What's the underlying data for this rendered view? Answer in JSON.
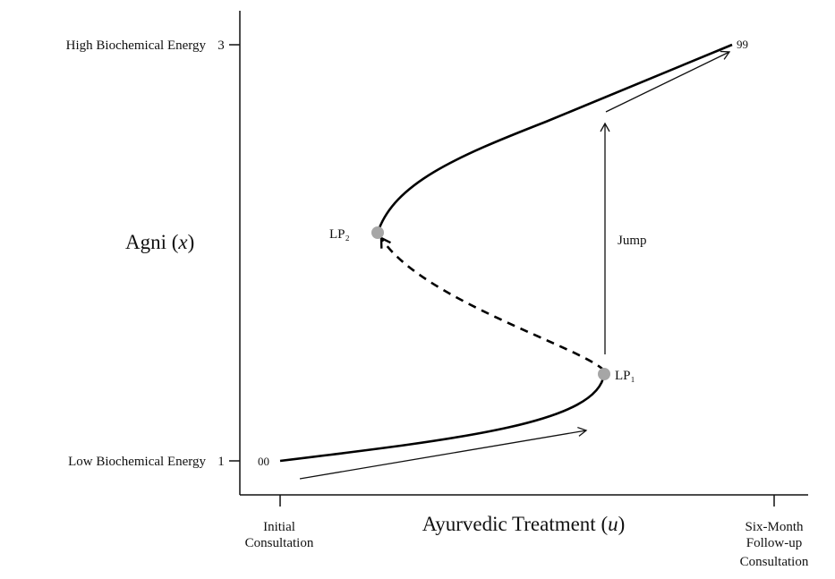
{
  "y_axis": {
    "title_prefix": "Agni (",
    "title_var": "x",
    "title_suffix": ")",
    "high_label": "High Biochemical Energy",
    "high_value": "3",
    "low_label": "Low Biochemical Energy",
    "low_value": "1"
  },
  "x_axis": {
    "title_prefix": "Ayurvedic Treatment (",
    "title_var": "u",
    "title_suffix": ")",
    "start_label": [
      "Initial",
      "Consultation"
    ],
    "end_label": [
      "Six-Month",
      "Follow-up",
      "Consultation"
    ]
  },
  "points": {
    "start": "00",
    "end": "99",
    "lp1": "LP₁",
    "lp2": "LP₂"
  },
  "annotations": {
    "jump": "Jump"
  },
  "colors": {
    "curve": "#000000",
    "limit_point": "#a6a6a6"
  }
}
